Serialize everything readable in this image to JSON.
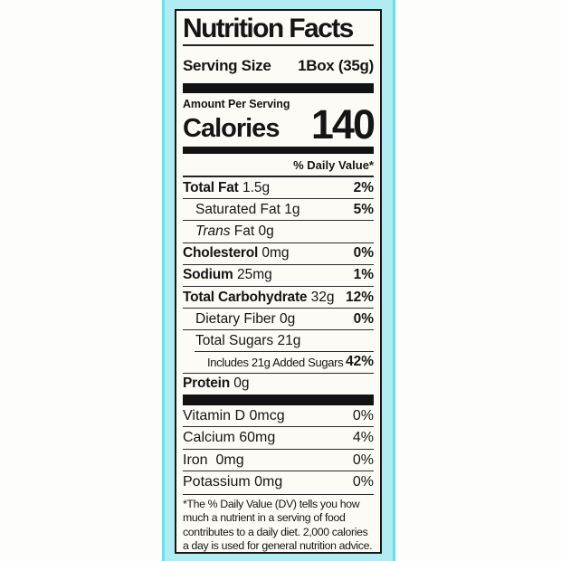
{
  "colors": {
    "band_fill": "#b0ecf2",
    "band_edge": "#6adee9",
    "label_bg": "#fcfbf5",
    "ink": "#151515",
    "page_bg": "#fdfdfc"
  },
  "label": {
    "title": "Nutrition Facts",
    "serving": {
      "name": "Serving Size",
      "value": "1Box (35g)"
    },
    "amount_per_serving": "Amount Per Serving",
    "calories": {
      "name": "Calories",
      "value": "140"
    },
    "daily_value_header": "% Daily Value*",
    "rows": [
      {
        "b": "Total Fat",
        "t": " 1.5g",
        "dv": "2%"
      },
      {
        "b": "",
        "t": "Saturated Fat 1g",
        "dv": "5%"
      },
      {
        "b": "",
        "i": "Trans",
        "t": " Fat 0g",
        "dv": ""
      },
      {
        "b": "Cholesterol",
        "t": " 0mg",
        "dv": "0%"
      },
      {
        "b": "Sodium",
        "t": " 25mg",
        "dv": "1%"
      },
      {
        "b": "Total Carbohydrate",
        "t": " 32g",
        "dv": "12%"
      },
      {
        "b": "",
        "t": "Dietary Fiber 0g",
        "dv": "0%"
      },
      {
        "b": "",
        "t": "Total Sugars 21g",
        "dv": ""
      },
      {
        "b": "",
        "t": "Includes 21g Added Sugars",
        "dv": "42%"
      },
      {
        "b": "Protein",
        "t": " 0g",
        "dv": ""
      }
    ],
    "vitamins": [
      {
        "t": "Vitamin D 0mcg",
        "dv": "0%"
      },
      {
        "t": "Calcium 60mg",
        "dv": "4%"
      },
      {
        "t": "Iron  0mg",
        "dv": "0%"
      },
      {
        "t": "Potassium 0mg",
        "dv": "0%"
      }
    ],
    "footnote": "*The % Daily Value (DV) tells you how much a nutrient in a serving of food contributes to a daily diet. 2,000 calories a day is used for general nutrition advice."
  }
}
